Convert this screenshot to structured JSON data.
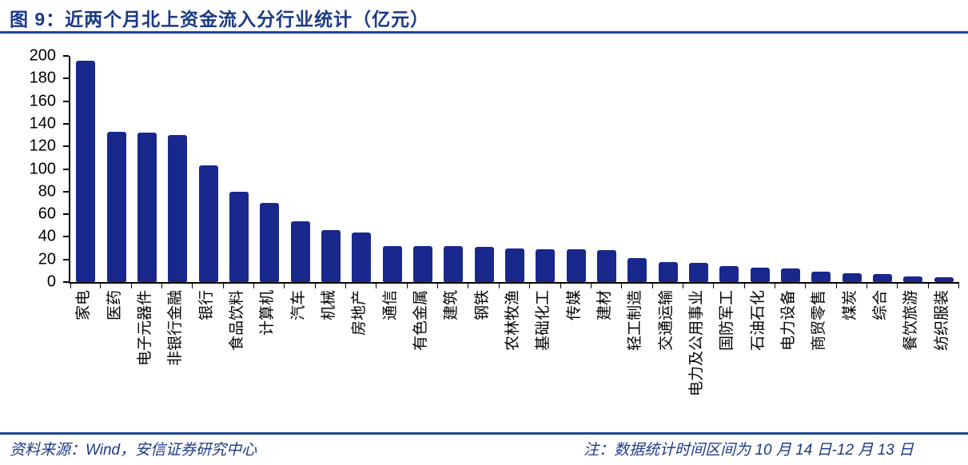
{
  "header": {
    "title": "图 9：近两个月北上资金流入分行业统计（亿元）"
  },
  "chart_data": {
    "type": "bar",
    "title": "近两个月北上资金流入分行业统计（亿元）",
    "unit": "亿元",
    "categories": [
      "家电",
      "医药",
      "电子元器件",
      "非银行金融",
      "银行",
      "食品饮料",
      "计算机",
      "汽车",
      "机械",
      "房地产",
      "通信",
      "有色金属",
      "建筑",
      "钢铁",
      "农林牧渔",
      "基础化工",
      "传媒",
      "建材",
      "轻工制造",
      "交通运输",
      "电力及公用事业",
      "国防军工",
      "石油石化",
      "电力设备",
      "商贸零售",
      "煤炭",
      "综合",
      "餐饮旅游",
      "纺织服装"
    ],
    "values": [
      196,
      133,
      132,
      130,
      103,
      80,
      70,
      54,
      46,
      44,
      32,
      32,
      32,
      31,
      30,
      29,
      29,
      28,
      21,
      18,
      17,
      14,
      13,
      12,
      9,
      8,
      7,
      5,
      4
    ],
    "ylim": [
      0,
      200
    ],
    "yticks": [
      0,
      20,
      40,
      60,
      80,
      100,
      120,
      140,
      160,
      180,
      200
    ],
    "xlabel": "",
    "ylabel": "",
    "grid": false,
    "legend": false,
    "bar_color": "#19288c",
    "axis_color": "#000000",
    "accent_color": "#1d4795"
  },
  "footer": {
    "source": "资料来源：Wind，安信证券研究中心",
    "note": "注：数据统计时间区间为 10 月 14 日-12 月 13 日"
  }
}
